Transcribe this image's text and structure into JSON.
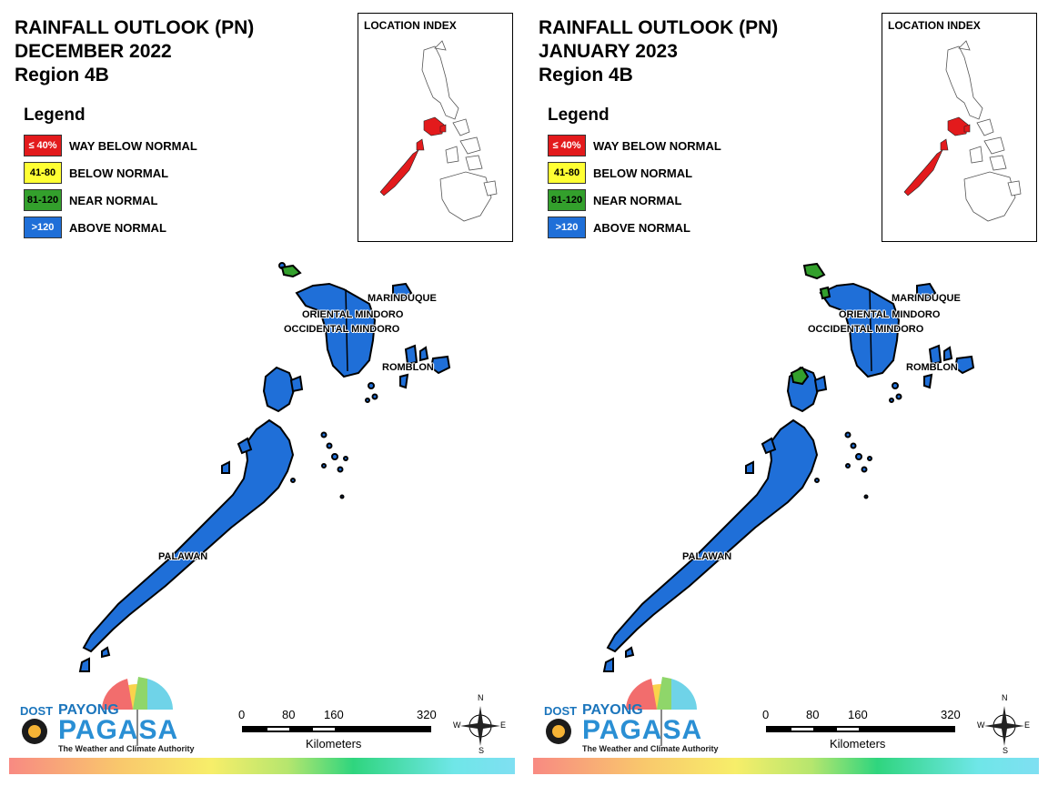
{
  "panels": [
    {
      "title_line1": "RAINFALL OUTLOOK (PN)",
      "title_line2": "DECEMBER 2022",
      "title_line3": "Region 4B",
      "legend": {
        "title": "Legend",
        "items": [
          {
            "range": "≤ 40%",
            "label": "WAY BELOW NORMAL",
            "color": "#e31a1c",
            "text_color": "#ffffff"
          },
          {
            "range": "41-80",
            "label": "BELOW NORMAL",
            "color": "#ffff33",
            "text_color": "#000000"
          },
          {
            "range": "81-120",
            "label": "NEAR NORMAL",
            "color": "#33a02c",
            "text_color": "#000000"
          },
          {
            "range": ">120",
            "label": "ABOVE NORMAL",
            "color": "#1f6fd8",
            "text_color": "#ffffff"
          }
        ]
      },
      "inset_title": "LOCATION INDEX",
      "provinces": [
        {
          "name": "MARINDUQUE",
          "outlook": "ABOVE NORMAL"
        },
        {
          "name": "ORIENTAL MINDORO",
          "outlook": "ABOVE NORMAL"
        },
        {
          "name": "OCCIDENTAL MINDORO",
          "outlook": "ABOVE NORMAL"
        },
        {
          "name": "ROMBLON",
          "outlook": "ABOVE NORMAL"
        },
        {
          "name": "PALAWAN",
          "outlook": "ABOVE NORMAL"
        }
      ],
      "near_normal_areas": [
        "northwest islet of Occidental Mindoro"
      ],
      "scale": {
        "ticks": [
          "0",
          "80",
          "160",
          "320"
        ],
        "unit": "Kilometers"
      },
      "compass": {
        "n": "N",
        "s": "S",
        "e": "E",
        "w": "W"
      },
      "logo": {
        "dost": "DOST",
        "payong": "PAYONG",
        "pagasa": "PAGASA",
        "tagline": "The Weather and Climate Authority"
      }
    },
    {
      "title_line1": "RAINFALL OUTLOOK (PN)",
      "title_line2": "JANUARY 2023",
      "title_line3": "Region 4B",
      "legend": {
        "title": "Legend",
        "items": [
          {
            "range": "≤ 40%",
            "label": "WAY BELOW NORMAL",
            "color": "#e31a1c",
            "text_color": "#ffffff"
          },
          {
            "range": "41-80",
            "label": "BELOW NORMAL",
            "color": "#ffff33",
            "text_color": "#000000"
          },
          {
            "range": "81-120",
            "label": "NEAR NORMAL",
            "color": "#33a02c",
            "text_color": "#000000"
          },
          {
            "range": ">120",
            "label": "ABOVE NORMAL",
            "color": "#1f6fd8",
            "text_color": "#ffffff"
          }
        ]
      },
      "inset_title": "LOCATION INDEX",
      "provinces": [
        {
          "name": "MARINDUQUE",
          "outlook": "ABOVE NORMAL"
        },
        {
          "name": "ORIENTAL MINDORO",
          "outlook": "ABOVE NORMAL"
        },
        {
          "name": "OCCIDENTAL MINDORO",
          "outlook": "ABOVE NORMAL"
        },
        {
          "name": "ROMBLON",
          "outlook": "ABOVE NORMAL"
        },
        {
          "name": "PALAWAN",
          "outlook": "ABOVE NORMAL"
        }
      ],
      "near_normal_areas": [
        "northwest islets of Occidental Mindoro",
        "northern Palawan (Busuanga area)"
      ],
      "scale": {
        "ticks": [
          "0",
          "80",
          "160",
          "320"
        ],
        "unit": "Kilometers"
      },
      "compass": {
        "n": "N",
        "s": "S",
        "e": "E",
        "w": "W"
      },
      "logo": {
        "dost": "DOST",
        "payong": "PAYONG",
        "pagasa": "PAGASA",
        "tagline": "The Weather and Climate Authority"
      }
    }
  ],
  "colors": {
    "above_normal": "#1f6fd8",
    "near_normal": "#33a02c",
    "way_below_normal": "#e31a1c"
  }
}
